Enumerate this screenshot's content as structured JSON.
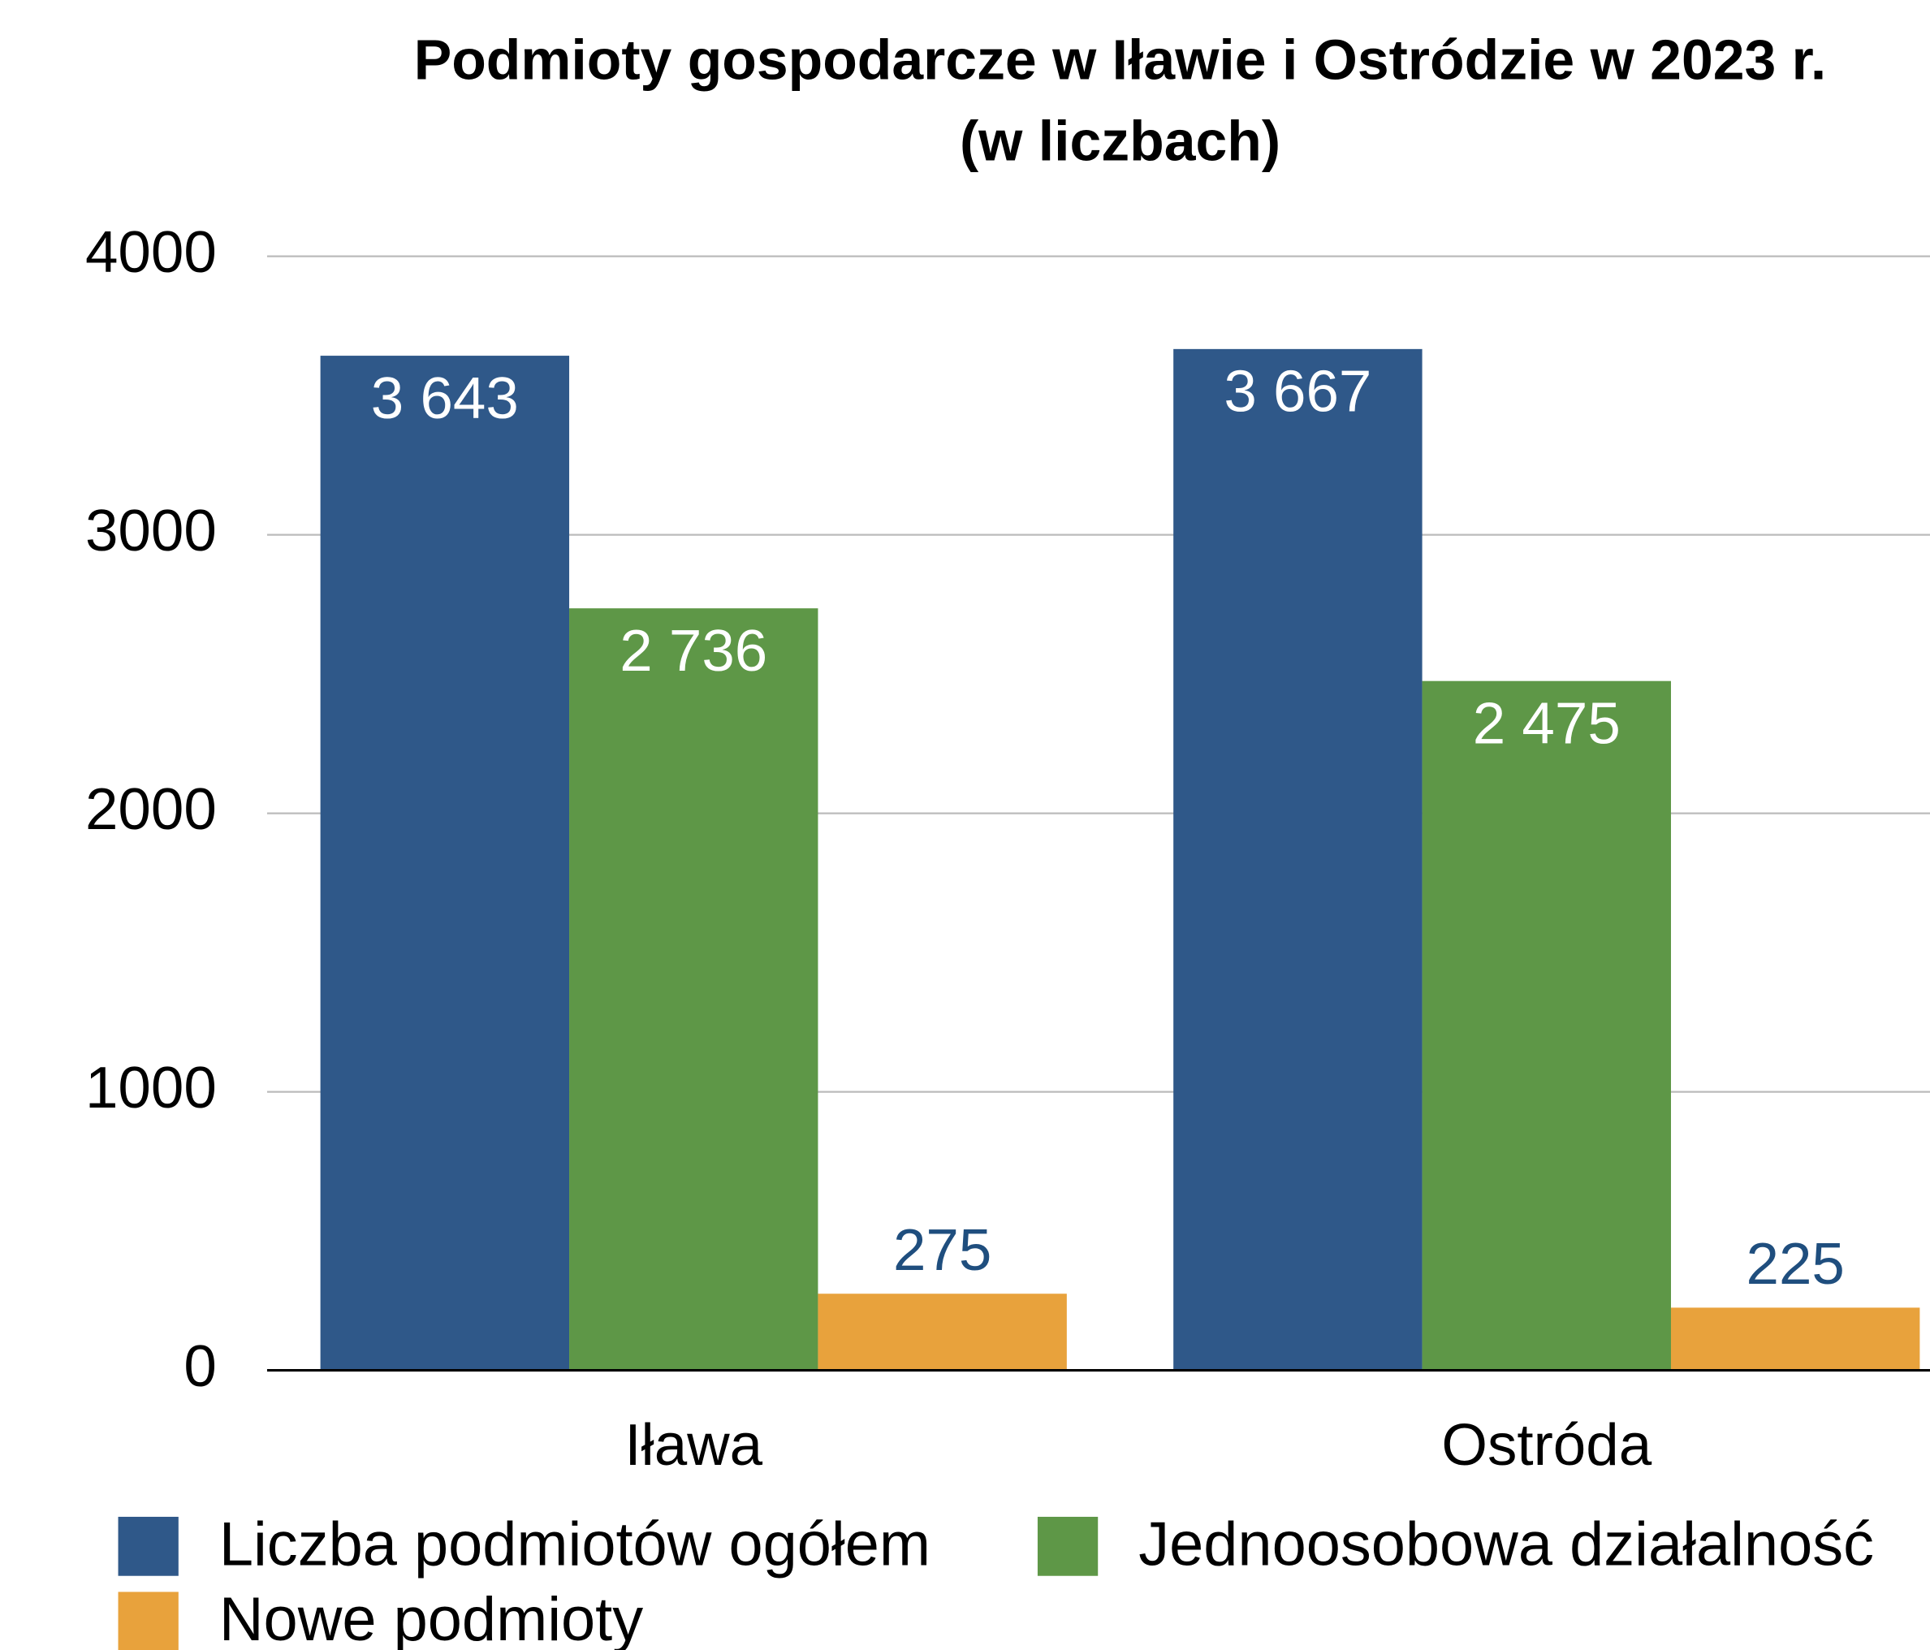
{
  "chart_data": {
    "type": "bar",
    "title": "Podmioty gospodarcze w Iławie i Ostródzie w 2023 r.",
    "subtitle": "(w liczbach)",
    "categories": [
      "Iława",
      "Ostróda"
    ],
    "series": [
      {
        "name": "Liczba podmiotów ogółem",
        "color": "#2f5889",
        "values": [
          3643,
          3667
        ],
        "value_labels": [
          "3 643",
          "3 667"
        ]
      },
      {
        "name": "Jednoosobowa działalność",
        "color": "#5e9747",
        "values": [
          2736,
          2475
        ],
        "value_labels": [
          "2 736",
          "2 475"
        ]
      },
      {
        "name": "Nowe podmioty",
        "color": "#e8a23c",
        "values": [
          275,
          225
        ]
      }
    ],
    "ylim": [
      0,
      4000
    ],
    "yticks": [
      0,
      1000,
      2000,
      3000,
      4000
    ],
    "grid": true
  }
}
